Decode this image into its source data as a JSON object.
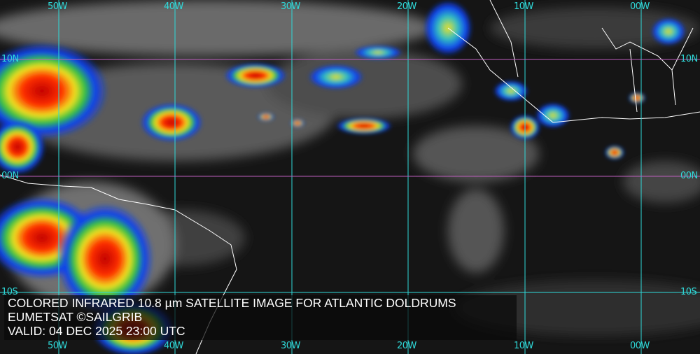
{
  "caption": {
    "line1": "COLORED INFRARED 10.8 µm SATELLITE IMAGE FOR ATLANTIC DOLDRUMS",
    "line2": "EUMETSAT ©SAILGRIB",
    "line3": "VALID:  04 DEC 2025 23:00 UTC"
  },
  "grid": {
    "longitudes": [
      "50W",
      "40W",
      "30W",
      "20W",
      "10W",
      "00W"
    ],
    "latitudes": [
      "10N",
      "00N",
      "10S"
    ]
  },
  "colors": {
    "grid_lon": "#2fd9d9",
    "grid_lat": "#c060c0",
    "coast": "#ffffff",
    "cold_top": "#d01010",
    "mid": "#f0e020",
    "warm": "#1030f0"
  }
}
